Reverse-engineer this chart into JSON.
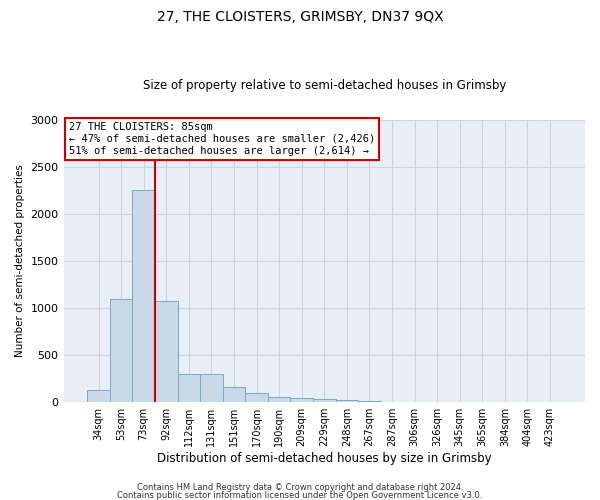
{
  "title": "27, THE CLOISTERS, GRIMSBY, DN37 9QX",
  "subtitle": "Size of property relative to semi-detached houses in Grimsby",
  "xlabel": "Distribution of semi-detached houses by size in Grimsby",
  "ylabel": "Number of semi-detached properties",
  "categories": [
    "34sqm",
    "53sqm",
    "73sqm",
    "92sqm",
    "112sqm",
    "131sqm",
    "151sqm",
    "170sqm",
    "190sqm",
    "209sqm",
    "229sqm",
    "248sqm",
    "267sqm",
    "287sqm",
    "306sqm",
    "326sqm",
    "345sqm",
    "365sqm",
    "384sqm",
    "404sqm",
    "423sqm"
  ],
  "values": [
    125,
    1100,
    2250,
    1075,
    295,
    295,
    160,
    95,
    60,
    45,
    35,
    20,
    10,
    5,
    3,
    2,
    1,
    1,
    0,
    0,
    0
  ],
  "bar_color": "#c9d9e8",
  "bar_edge_color": "#7aaac8",
  "red_line_bin": 2,
  "annotation_title": "27 THE CLOISTERS: 85sqm",
  "annotation_line1": "← 47% of semi-detached houses are smaller (2,426)",
  "annotation_line2": "51% of semi-detached houses are larger (2,614) →",
  "annotation_box_color": "#ffffff",
  "annotation_box_edge_color": "#cc0000",
  "red_line_color": "#cc0000",
  "grid_color": "#cdd5e0",
  "background_color": "#e8eef5",
  "ylim": [
    0,
    3000
  ],
  "yticks": [
    0,
    500,
    1000,
    1500,
    2000,
    2500,
    3000
  ],
  "footer1": "Contains HM Land Registry data © Crown copyright and database right 2024.",
  "footer2": "Contains public sector information licensed under the Open Government Licence v3.0."
}
